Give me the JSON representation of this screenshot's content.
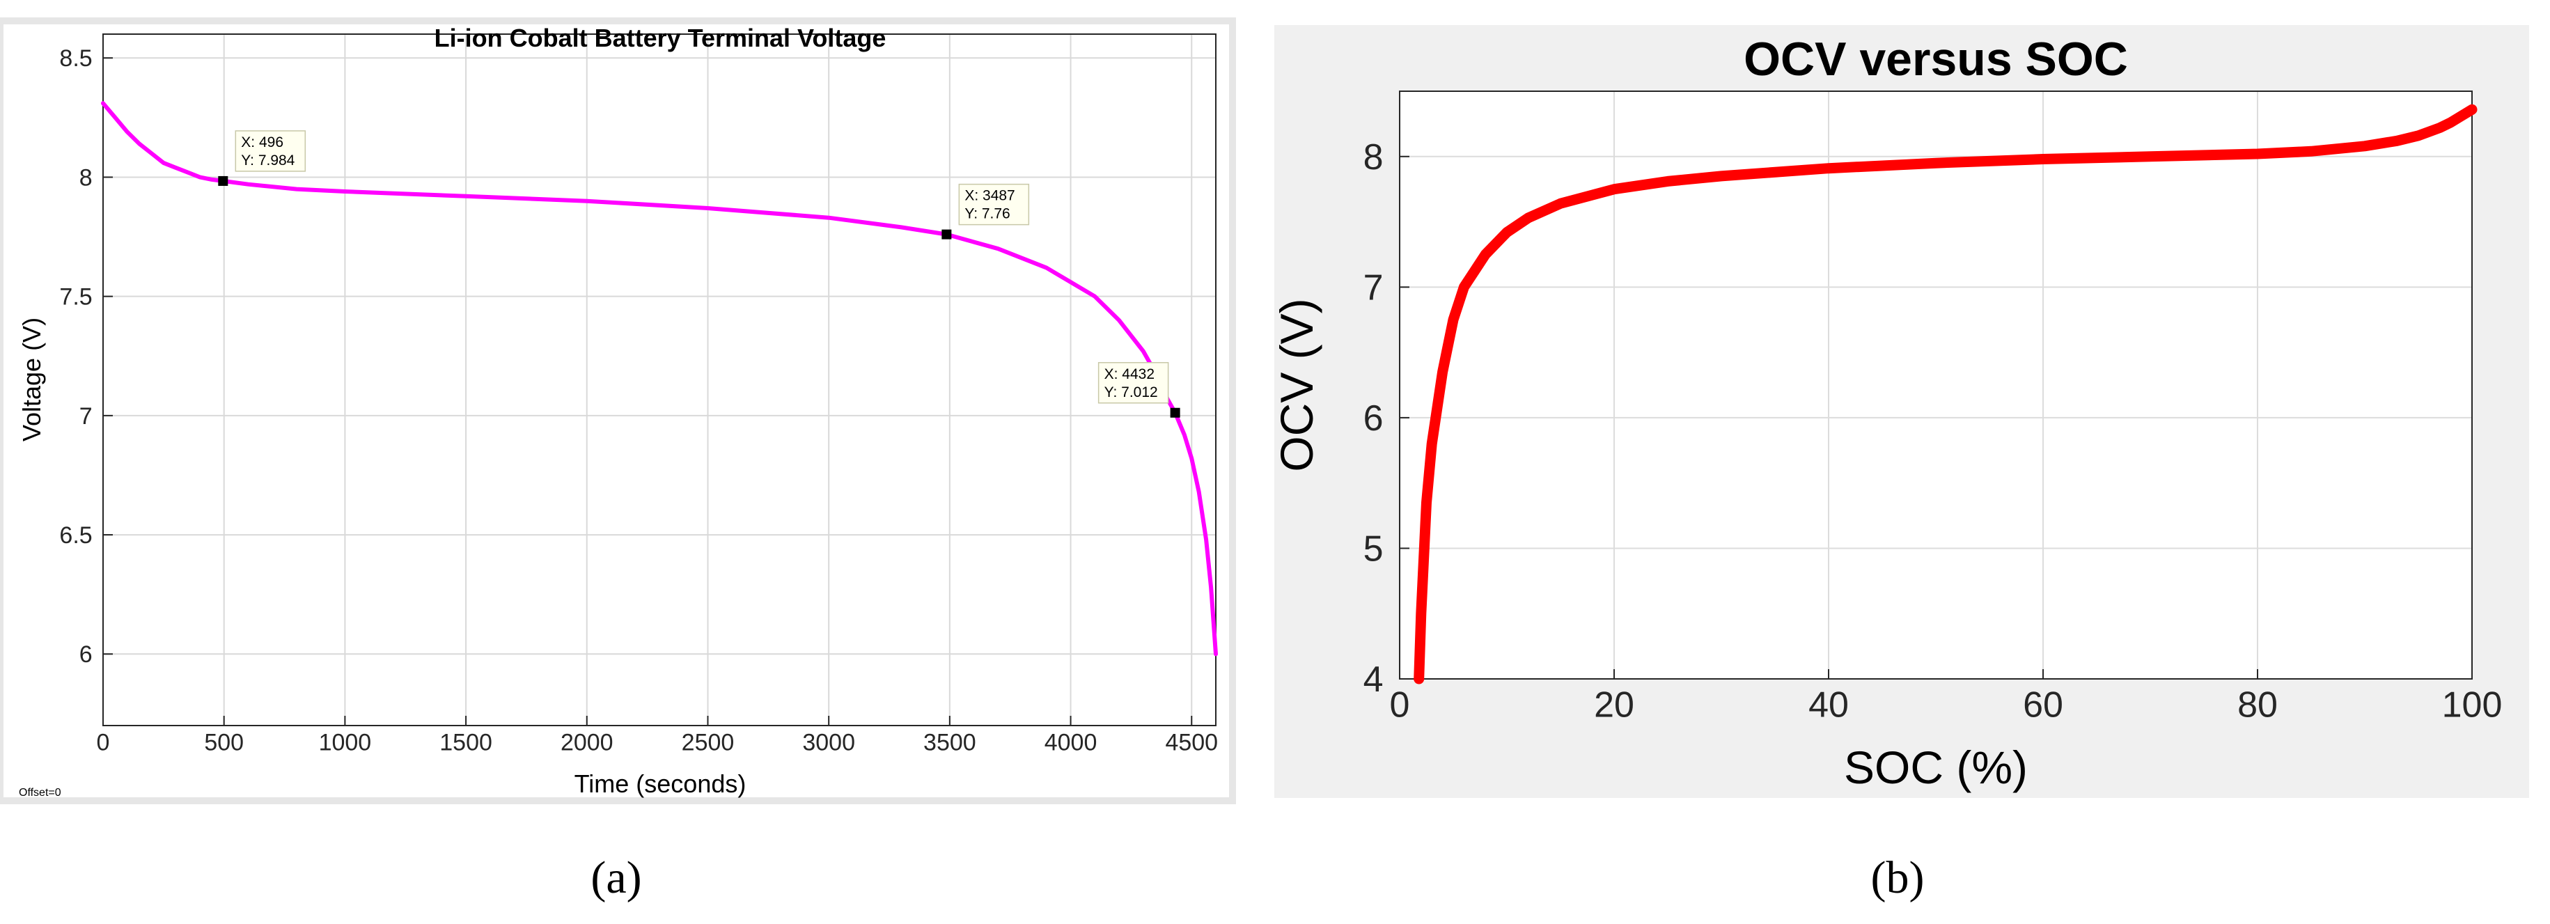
{
  "chart_data": [
    {
      "type": "line",
      "title": "Li-ion Cobalt Battery Terminal Voltage",
      "xlabel": "Time (seconds)",
      "ylabel": "Voltage (V)",
      "xlim": [
        0,
        4600
      ],
      "ylim": [
        5.7,
        8.6
      ],
      "grid": true,
      "xticks": [
        0,
        500,
        1000,
        1500,
        2000,
        2500,
        3000,
        3500,
        4000,
        4500
      ],
      "yticks": [
        6,
        6.5,
        7,
        7.5,
        8,
        8.5
      ],
      "xtick_labels": [
        "0",
        "500",
        "1000",
        "1500",
        "2000",
        "2500",
        "3000",
        "3500",
        "4000",
        "4500"
      ],
      "ytick_labels": [
        "6",
        "6.5",
        "7",
        "7.5",
        "8",
        "8.5"
      ],
      "color": "#ff00ff",
      "series": [
        {
          "x": [
            0,
            50,
            100,
            150,
            200,
            250,
            300,
            350,
            400,
            450,
            496,
            600,
            800,
            1000,
            1500,
            2000,
            2500,
            3000,
            3300,
            3487,
            3700,
            3900,
            4100,
            4200,
            4300,
            4350,
            4400,
            4432,
            4470,
            4500,
            4530,
            4560,
            4580,
            4600
          ],
          "y": [
            8.31,
            8.25,
            8.19,
            8.14,
            8.1,
            8.06,
            8.04,
            8.02,
            8.0,
            7.99,
            7.984,
            7.97,
            7.95,
            7.94,
            7.92,
            7.9,
            7.87,
            7.83,
            7.79,
            7.76,
            7.7,
            7.62,
            7.5,
            7.4,
            7.27,
            7.18,
            7.07,
            7.012,
            6.92,
            6.82,
            6.68,
            6.48,
            6.28,
            6.0
          ]
        }
      ],
      "annotations": [
        {
          "x": 496,
          "y": 7.984,
          "line1": "X: 496",
          "line2": "Y: 7.984"
        },
        {
          "x": 3487,
          "y": 7.76,
          "line1": "X: 3487",
          "line2": "Y: 7.76"
        },
        {
          "x": 4432,
          "y": 7.012,
          "line1": "X: 4432",
          "line2": "Y: 7.012"
        }
      ],
      "corner_note": "Offset=0",
      "panel_label": "(a)"
    },
    {
      "type": "line",
      "title": "OCV versus SOC",
      "xlabel": "SOC (%)",
      "ylabel": "OCV (V)",
      "xlim": [
        0,
        100
      ],
      "ylim": [
        4,
        8.5
      ],
      "grid": true,
      "xticks": [
        0,
        20,
        40,
        60,
        80,
        100
      ],
      "yticks": [
        4,
        5,
        6,
        7,
        8
      ],
      "xtick_labels": [
        "0",
        "20",
        "40",
        "60",
        "80",
        "100"
      ],
      "ytick_labels": [
        "4",
        "5",
        "6",
        "7",
        "8"
      ],
      "color": "#ff0000",
      "series": [
        {
          "x": [
            1.8,
            2,
            2.5,
            3,
            4,
            5,
            6,
            8,
            10,
            12,
            15,
            20,
            25,
            30,
            40,
            50,
            60,
            70,
            80,
            85,
            90,
            93,
            95,
            97,
            98,
            99,
            100
          ],
          "y": [
            4.0,
            4.5,
            5.35,
            5.8,
            6.35,
            6.75,
            7.0,
            7.25,
            7.42,
            7.53,
            7.64,
            7.75,
            7.81,
            7.85,
            7.91,
            7.95,
            7.98,
            8.0,
            8.02,
            8.04,
            8.08,
            8.12,
            8.16,
            8.22,
            8.26,
            8.31,
            8.36
          ]
        }
      ],
      "panel_label": "(b)"
    }
  ]
}
